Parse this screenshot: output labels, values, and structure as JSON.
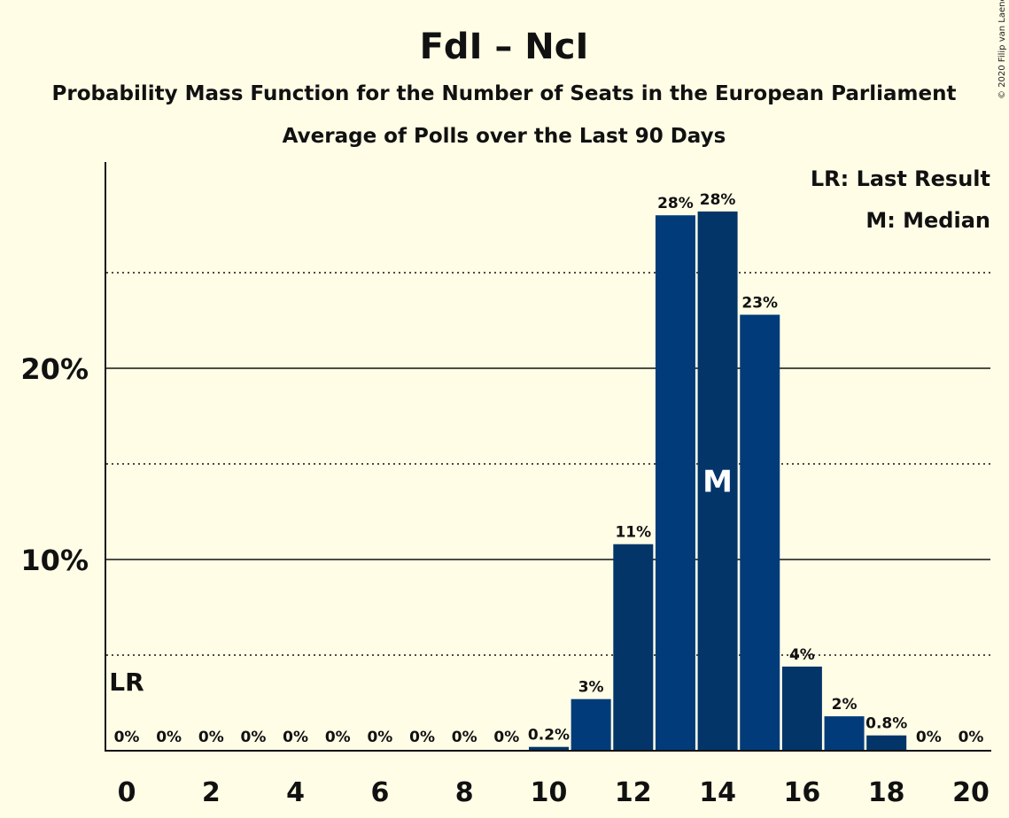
{
  "chart_data": {
    "type": "bar",
    "title": "FdI – NcI",
    "subtitle": "Probability Mass Function for the Number of Seats in the European Parliament",
    "subtitle2": "Average of Polls over the Last 90 Days",
    "copyright": "© 2020 Filip van Laenen",
    "x": [
      0,
      1,
      2,
      3,
      4,
      5,
      6,
      7,
      8,
      9,
      10,
      11,
      12,
      13,
      14,
      15,
      16,
      17,
      18,
      19,
      20
    ],
    "values": [
      0,
      0,
      0,
      0,
      0,
      0,
      0,
      0,
      0,
      0,
      0.2,
      2.7,
      10.8,
      28.0,
      28.2,
      22.8,
      4.4,
      1.8,
      0.8,
      0,
      0
    ],
    "labels": [
      "0%",
      "0%",
      "0%",
      "0%",
      "0%",
      "0%",
      "0%",
      "0%",
      "0%",
      "0%",
      "0.2%",
      "3%",
      "11%",
      "28%",
      "28%",
      "23%",
      "4%",
      "2%",
      "0.8%",
      "0%",
      "0%"
    ],
    "xticks": [
      "0",
      "2",
      "4",
      "6",
      "8",
      "10",
      "12",
      "14",
      "16",
      "18",
      "20"
    ],
    "yticks": [
      "10%",
      "20%"
    ],
    "ylim": [
      0,
      31
    ],
    "grid": "solid at 10% and 20%, dotted at 5%, 15%, 25%",
    "last_result_seat": 0,
    "median_seat": 14,
    "lr_marker": "LR",
    "median_marker": "M",
    "legend": [
      "LR: Last Result",
      "M: Median"
    ],
    "legend_position": "top-right",
    "colors": {
      "bar_light": "#023B7A",
      "bar_dark": "#033569",
      "background": "#FFFDE6"
    }
  }
}
